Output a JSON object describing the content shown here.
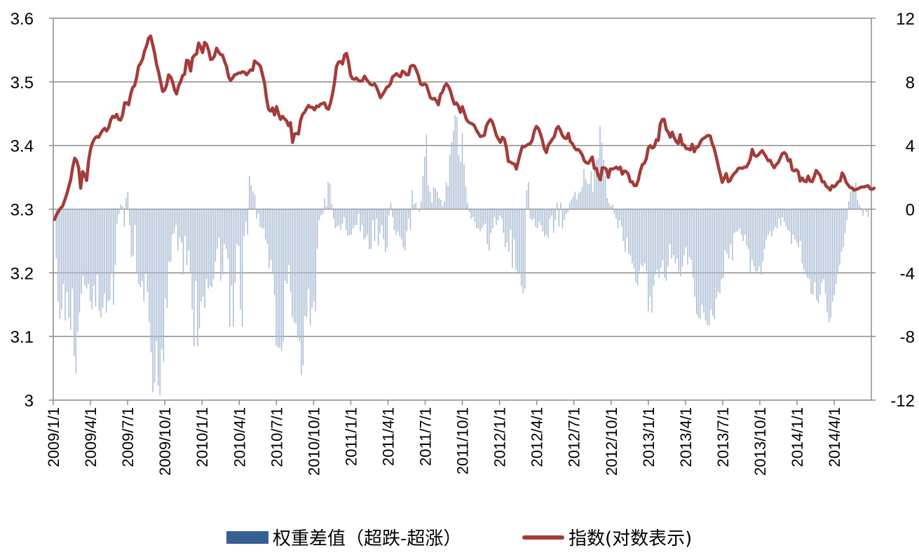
{
  "chart_data": {
    "type": "bar+line",
    "x_tick_labels": [
      "2009/1/1",
      "2009/4/1",
      "2009/7/1",
      "2009/10/1",
      "2010/1/1",
      "2010/4/1",
      "2010/7/1",
      "2010/10/1",
      "2011/1/1",
      "2011/4/1",
      "2011/7/1",
      "2011/10/1",
      "2012/1/1",
      "2012/4/1",
      "2012/7/1",
      "2012/10/1",
      "2013/1/1",
      "2013/4/1",
      "2013/7/1",
      "2013/10/1",
      "2014/1/1",
      "2014/4/1"
    ],
    "y_left": {
      "range": [
        3.0,
        3.6
      ],
      "ticks": [
        "3",
        "3.1",
        "3.2",
        "3.3",
        "3.4",
        "3.5",
        "3.6"
      ]
    },
    "y_right": {
      "range": [
        -12,
        12
      ],
      "ticks": [
        "-12",
        "-8",
        "-4",
        "0",
        "4",
        "8",
        "12"
      ]
    },
    "grid": "horizontal",
    "legend_position": "bottom",
    "series": [
      {
        "name": "权重差值（超跌-超涨）",
        "type": "bar",
        "axis": "right",
        "color": "#a9bcd4",
        "swatch_color": "#376092",
        "time_range": [
          "2009/1/1",
          "2014/6/30"
        ],
        "values": [
          -3.1,
          -5.8,
          -6.9,
          -6.3,
          -4.7,
          -7.0,
          -5.2,
          -6.8,
          -7.6,
          -5.0,
          -9.2,
          -10.3,
          -7.7,
          -6.5,
          -5.3,
          -4.2,
          -4.8,
          -5.0,
          -4.7,
          -5.8,
          -6.3,
          -4.8,
          -6.1,
          -4.1,
          -6.4,
          -6.8,
          -6.2,
          -5.3,
          -6.5,
          -5.8,
          -5.7,
          -4.0,
          -6.0,
          -3.5,
          -0.9,
          -0.3,
          0.3,
          0.2,
          -1.1,
          0.7,
          1.1,
          -1.0,
          -3.0,
          -2.9,
          -1.0,
          -4.0,
          -4.7,
          -4.9,
          -4.5,
          -5.8,
          -4.0,
          -5.2,
          -7.1,
          -9.0,
          -11.5,
          -10.9,
          -8.3,
          -11.1,
          -11.7,
          -8.8,
          -9.6,
          -5.6,
          -6.2,
          -3.3,
          -3.3,
          -1.6,
          -1.5,
          -1.0,
          -2.6,
          -1.8,
          -2.1,
          -4.1,
          -1.7,
          -3.5,
          -2.6,
          -4.0,
          -6.3,
          -8.6,
          -4.5,
          -8.6,
          -7.5,
          -5.8,
          -5.5,
          -6.2,
          -4.4,
          -5.0,
          -4.8,
          -4.9,
          -4.4,
          -3.3,
          -2.5,
          -1.8,
          -4.5,
          -4.1,
          -2.2,
          -2.5,
          -3.1,
          -7.4,
          -4.8,
          -7.4,
          -4.6,
          -2.2,
          -2.3,
          -6.3,
          -7.4,
          -1.7,
          -0.8,
          -1.6,
          2.1,
          1.5,
          1.1,
          0.9,
          -0.6,
          -0.3,
          -1.1,
          -1.2,
          -1.2,
          -1.9,
          -2.2,
          -3.7,
          -3.2,
          -4.1,
          -5.4,
          -8.6,
          -8.7,
          -8.7,
          -8.9,
          -8.3,
          -4.5,
          -4.7,
          -3.5,
          -5.2,
          -6.8,
          -7.1,
          -7.2,
          -8.0,
          -8.3,
          -10.4,
          -9.8,
          -6.7,
          -6.8,
          -5.0,
          -7.3,
          -6.2,
          -5.8,
          -6.4,
          -2.5,
          -0.7,
          -0.4,
          -0.3,
          0.7,
          0.2,
          1.7,
          1.6,
          0.3,
          -0.6,
          -1.2,
          -1.1,
          -1.0,
          -1.3,
          -0.9,
          -0.5,
          -1.3,
          -1.7,
          -1.6,
          -1.6,
          -1.2,
          -1.0,
          -1.0,
          -0.3,
          -1.4,
          -1.0,
          -1.9,
          -1.8,
          -1.6,
          -2.5,
          -2.5,
          -0.7,
          -2.0,
          -0.6,
          -2.3,
          -1.5,
          -1.0,
          -1.9,
          -2.7,
          -2.4,
          -0.4,
          0.4,
          -0.5,
          -1.3,
          -1.6,
          -1.4,
          -1.7,
          -1.9,
          -2.4,
          -2.6,
          -1.4,
          -0.6,
          -1.3,
          1.2,
          0.3,
          0.4,
          0.0,
          -0.2,
          0.5,
          2.1,
          3.3,
          4.7,
          1.5,
          1.1,
          0.4,
          1.4,
          1.3,
          1.1,
          0.7,
          0.6,
          0.2,
          0.5,
          1.7,
          1.5,
          3.4,
          4.2,
          4.9,
          5.9,
          5.8,
          3.4,
          3.0,
          4.8,
          2.8,
          1.4,
          0.4,
          -0.2,
          -0.6,
          -0.5,
          -0.8,
          -1.2,
          -1.2,
          -1.4,
          -1.2,
          -1.0,
          -0.9,
          -2.2,
          -2.6,
          -1.5,
          -1.2,
          -0.5,
          -1.0,
          -0.7,
          -0.4,
          -0.6,
          -1.5,
          -2.4,
          -2.1,
          -2.7,
          -1.3,
          -3.7,
          -1.9,
          -3.8,
          -4.1,
          -4.0,
          -4.8,
          -5.3,
          -5.0,
          1.2,
          1.7,
          -0.6,
          -0.7,
          -0.6,
          -1.1,
          -1.2,
          -0.8,
          -1.0,
          -1.4,
          -1.7,
          -1.6,
          -1.8,
          -0.6,
          -0.4,
          -1.5,
          -0.7,
          0.4,
          -1.1,
          0.4,
          -1.2,
          -0.7,
          -0.3,
          -0.2,
          0.4,
          0.6,
          0.8,
          1.1,
          0.6,
          1.0,
          1.1,
          1.4,
          2.5,
          1.9,
          1.6,
          1.6,
          2.4,
          1.1,
          2.7,
          3.1,
          3.2,
          5.2,
          4.2,
          3.1,
          2.1,
          0.7,
          0.4,
          0.2,
          0.3,
          -0.3,
          -0.6,
          -1.2,
          -0.7,
          -1.1,
          -2.0,
          -2.7,
          -1.8,
          -2.8,
          -2.9,
          -3.4,
          -3.7,
          -4.6,
          -4.8,
          -3.9,
          -3.5,
          -3.6,
          -3.4,
          -3.9,
          -6.4,
          -5.5,
          -6.5,
          -4.8,
          -4.1,
          -3.8,
          -4.3,
          -3.7,
          -3.2,
          -4.3,
          -4.5,
          -3.6,
          -2.2,
          -3.1,
          -2.9,
          -3.4,
          -3.1,
          -3.9,
          -4.2,
          -3.6,
          -2.9,
          -2.4,
          -3.5,
          -3.0,
          -3.2,
          -4.3,
          -5.5,
          -6.6,
          -6.8,
          -6.9,
          -6.0,
          -6.5,
          -7.0,
          -7.3,
          -7.3,
          -6.3,
          -6.7,
          -6.9,
          -5.6,
          -5.2,
          -5.3,
          -4.4,
          -4.3,
          -2.6,
          -2.8,
          -3.1,
          -2.2,
          -3.2,
          -1.5,
          -1.4,
          -1.4,
          -1.2,
          -1.6,
          -2.0,
          -1.6,
          -2.3,
          -2.5,
          -4.0,
          -3.2,
          -3.6,
          -3.9,
          -3.9,
          -3.6,
          -4.1,
          -3.3,
          -2.5,
          -1.9,
          -1.6,
          -1.4,
          -1.7,
          -1.3,
          -1.1,
          -1.2,
          -0.6,
          -1.0,
          -0.5,
          -0.8,
          -1.1,
          -1.3,
          -1.4,
          -2.2,
          -1.6,
          -1.9,
          -2.1,
          -2.4,
          -2.0,
          -3.4,
          -3.8,
          -4.1,
          -4.3,
          -4.4,
          -5.3,
          -5.4,
          -4.6,
          -5.7,
          -5.9,
          -5.4,
          -4.6,
          -4.4,
          -5.3,
          -6.5,
          -7.1,
          -6.8,
          -5.8,
          -5.4,
          -4.7,
          -4.1,
          -3.5,
          -2.7,
          -2.4,
          -1.5,
          -0.7,
          0.5,
          1.1,
          1.5,
          1.4,
          1.7,
          0.6,
          0.3,
          0.1,
          -0.4,
          0.0,
          -0.2,
          -0.5
        ]
      },
      {
        "name": "指数(对数表示)",
        "type": "line",
        "axis": "left",
        "color": "#a33c3a",
        "time_range": [
          "2009/1/1",
          "2014/6/30"
        ],
        "values": [
          3.284,
          3.292,
          3.297,
          3.302,
          3.305,
          3.314,
          3.323,
          3.335,
          3.346,
          3.366,
          3.38,
          3.376,
          3.365,
          3.333,
          3.359,
          3.354,
          3.345,
          3.377,
          3.395,
          3.405,
          3.411,
          3.414,
          3.413,
          3.419,
          3.424,
          3.427,
          3.423,
          3.428,
          3.44,
          3.446,
          3.444,
          3.449,
          3.441,
          3.44,
          3.448,
          3.467,
          3.467,
          3.464,
          3.48,
          3.491,
          3.494,
          3.507,
          3.525,
          3.529,
          3.536,
          3.549,
          3.557,
          3.569,
          3.572,
          3.559,
          3.545,
          3.527,
          3.515,
          3.5,
          3.485,
          3.487,
          3.495,
          3.511,
          3.508,
          3.5,
          3.487,
          3.481,
          3.494,
          3.5,
          3.51,
          3.512,
          3.534,
          3.533,
          3.517,
          3.538,
          3.542,
          3.544,
          3.561,
          3.555,
          3.546,
          3.562,
          3.559,
          3.55,
          3.535,
          3.536,
          3.541,
          3.553,
          3.547,
          3.543,
          3.542,
          3.532,
          3.524,
          3.508,
          3.502,
          3.506,
          3.511,
          3.512,
          3.514,
          3.514,
          3.516,
          3.515,
          3.511,
          3.515,
          3.519,
          3.518,
          3.533,
          3.53,
          3.528,
          3.524,
          3.511,
          3.498,
          3.474,
          3.457,
          3.454,
          3.459,
          3.448,
          3.461,
          3.45,
          3.441,
          3.446,
          3.442,
          3.439,
          3.431,
          3.436,
          3.405,
          3.418,
          3.419,
          3.418,
          3.439,
          3.449,
          3.452,
          3.458,
          3.463,
          3.46,
          3.46,
          3.456,
          3.462,
          3.461,
          3.465,
          3.466,
          3.467,
          3.459,
          3.457,
          3.467,
          3.481,
          3.499,
          3.524,
          3.531,
          3.532,
          3.528,
          3.542,
          3.545,
          3.532,
          3.511,
          3.505,
          3.504,
          3.506,
          3.502,
          3.501,
          3.502,
          3.509,
          3.504,
          3.5,
          3.496,
          3.495,
          3.497,
          3.492,
          3.484,
          3.475,
          3.48,
          3.485,
          3.491,
          3.493,
          3.497,
          3.508,
          3.51,
          3.513,
          3.51,
          3.508,
          3.517,
          3.515,
          3.511,
          3.511,
          3.524,
          3.526,
          3.525,
          3.518,
          3.51,
          3.497,
          3.495,
          3.497,
          3.495,
          3.485,
          3.475,
          3.473,
          3.474,
          3.47,
          3.464,
          3.48,
          3.484,
          3.493,
          3.497,
          3.493,
          3.486,
          3.474,
          3.465,
          3.467,
          3.462,
          3.452,
          3.461,
          3.451,
          3.441,
          3.437,
          3.435,
          3.434,
          3.431,
          3.424,
          3.419,
          3.414,
          3.415,
          3.416,
          3.431,
          3.437,
          3.441,
          3.437,
          3.427,
          3.416,
          3.41,
          3.405,
          3.413,
          3.41,
          3.396,
          3.375,
          3.374,
          3.372,
          3.371,
          3.363,
          3.376,
          3.388,
          3.399,
          3.398,
          3.4,
          3.402,
          3.403,
          3.409,
          3.423,
          3.43,
          3.427,
          3.419,
          3.408,
          3.395,
          3.389,
          3.401,
          3.405,
          3.41,
          3.414,
          3.426,
          3.43,
          3.424,
          3.416,
          3.412,
          3.411,
          3.419,
          3.406,
          3.403,
          3.397,
          3.393,
          3.394,
          3.39,
          3.385,
          3.376,
          3.373,
          3.372,
          3.377,
          3.382,
          3.364,
          3.364,
          3.353,
          3.346,
          3.365,
          3.365,
          3.363,
          3.35,
          3.363,
          3.363,
          3.364,
          3.366,
          3.363,
          3.366,
          3.355,
          3.36,
          3.359,
          3.355,
          3.343,
          3.343,
          3.337,
          3.337,
          3.346,
          3.36,
          3.37,
          3.372,
          3.379,
          3.396,
          3.4,
          3.396,
          3.398,
          3.409,
          3.408,
          3.434,
          3.441,
          3.441,
          3.425,
          3.421,
          3.413,
          3.421,
          3.412,
          3.406,
          3.403,
          3.417,
          3.401,
          3.401,
          3.395,
          3.395,
          3.393,
          3.402,
          3.39,
          3.397,
          3.398,
          3.405,
          3.41,
          3.412,
          3.414,
          3.416,
          3.415,
          3.403,
          3.395,
          3.382,
          3.368,
          3.355,
          3.342,
          3.349,
          3.356,
          3.343,
          3.345,
          3.352,
          3.356,
          3.359,
          3.364,
          3.365,
          3.364,
          3.366,
          3.366,
          3.371,
          3.378,
          3.394,
          3.385,
          3.383,
          3.385,
          3.389,
          3.392,
          3.387,
          3.382,
          3.376,
          3.377,
          3.37,
          3.365,
          3.37,
          3.373,
          3.38,
          3.387,
          3.389,
          3.386,
          3.376,
          3.378,
          3.362,
          3.36,
          3.362,
          3.359,
          3.344,
          3.349,
          3.344,
          3.343,
          3.352,
          3.344,
          3.343,
          3.351,
          3.361,
          3.357,
          3.353,
          3.343,
          3.343,
          3.336,
          3.334,
          3.33,
          3.337,
          3.335,
          3.338,
          3.343,
          3.344,
          3.357,
          3.352,
          3.342,
          3.338,
          3.334,
          3.333,
          3.33,
          3.331,
          3.332,
          3.334,
          3.335,
          3.335,
          3.336,
          3.337,
          3.332,
          3.331,
          3.333
        ]
      }
    ]
  }
}
